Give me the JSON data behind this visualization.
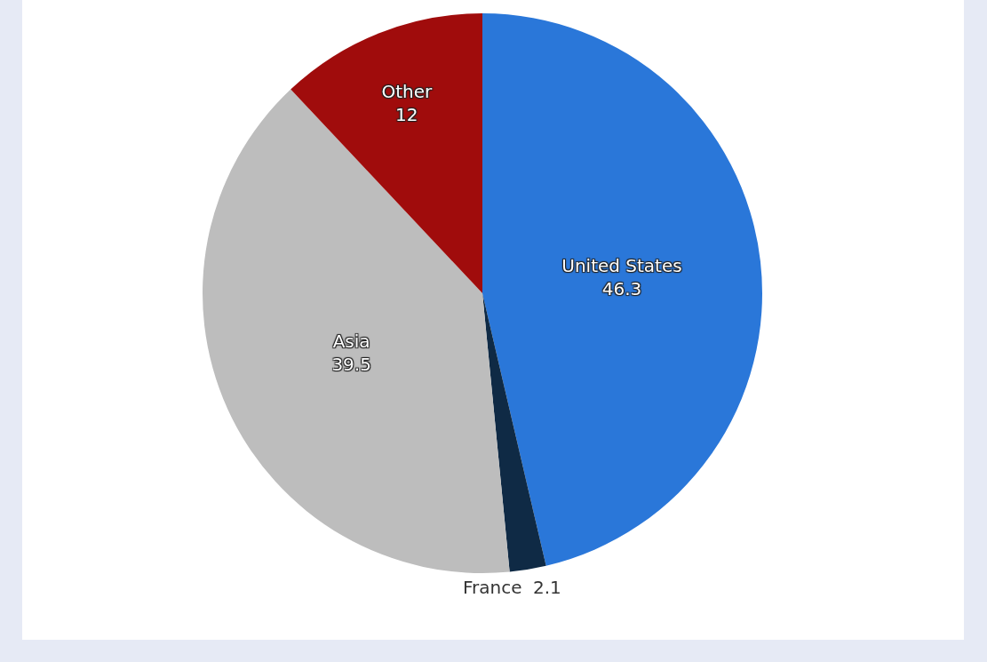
{
  "chart_data": {
    "type": "pie",
    "categories": [
      "United States",
      "France",
      "Asia",
      "Other"
    ],
    "values": [
      46.3,
      2.1,
      39.5,
      12
    ],
    "colors": [
      "#2a77d9",
      "#0f2a45",
      "#bdbdbd",
      "#a00c0c"
    ],
    "data_labels": true
  }
}
